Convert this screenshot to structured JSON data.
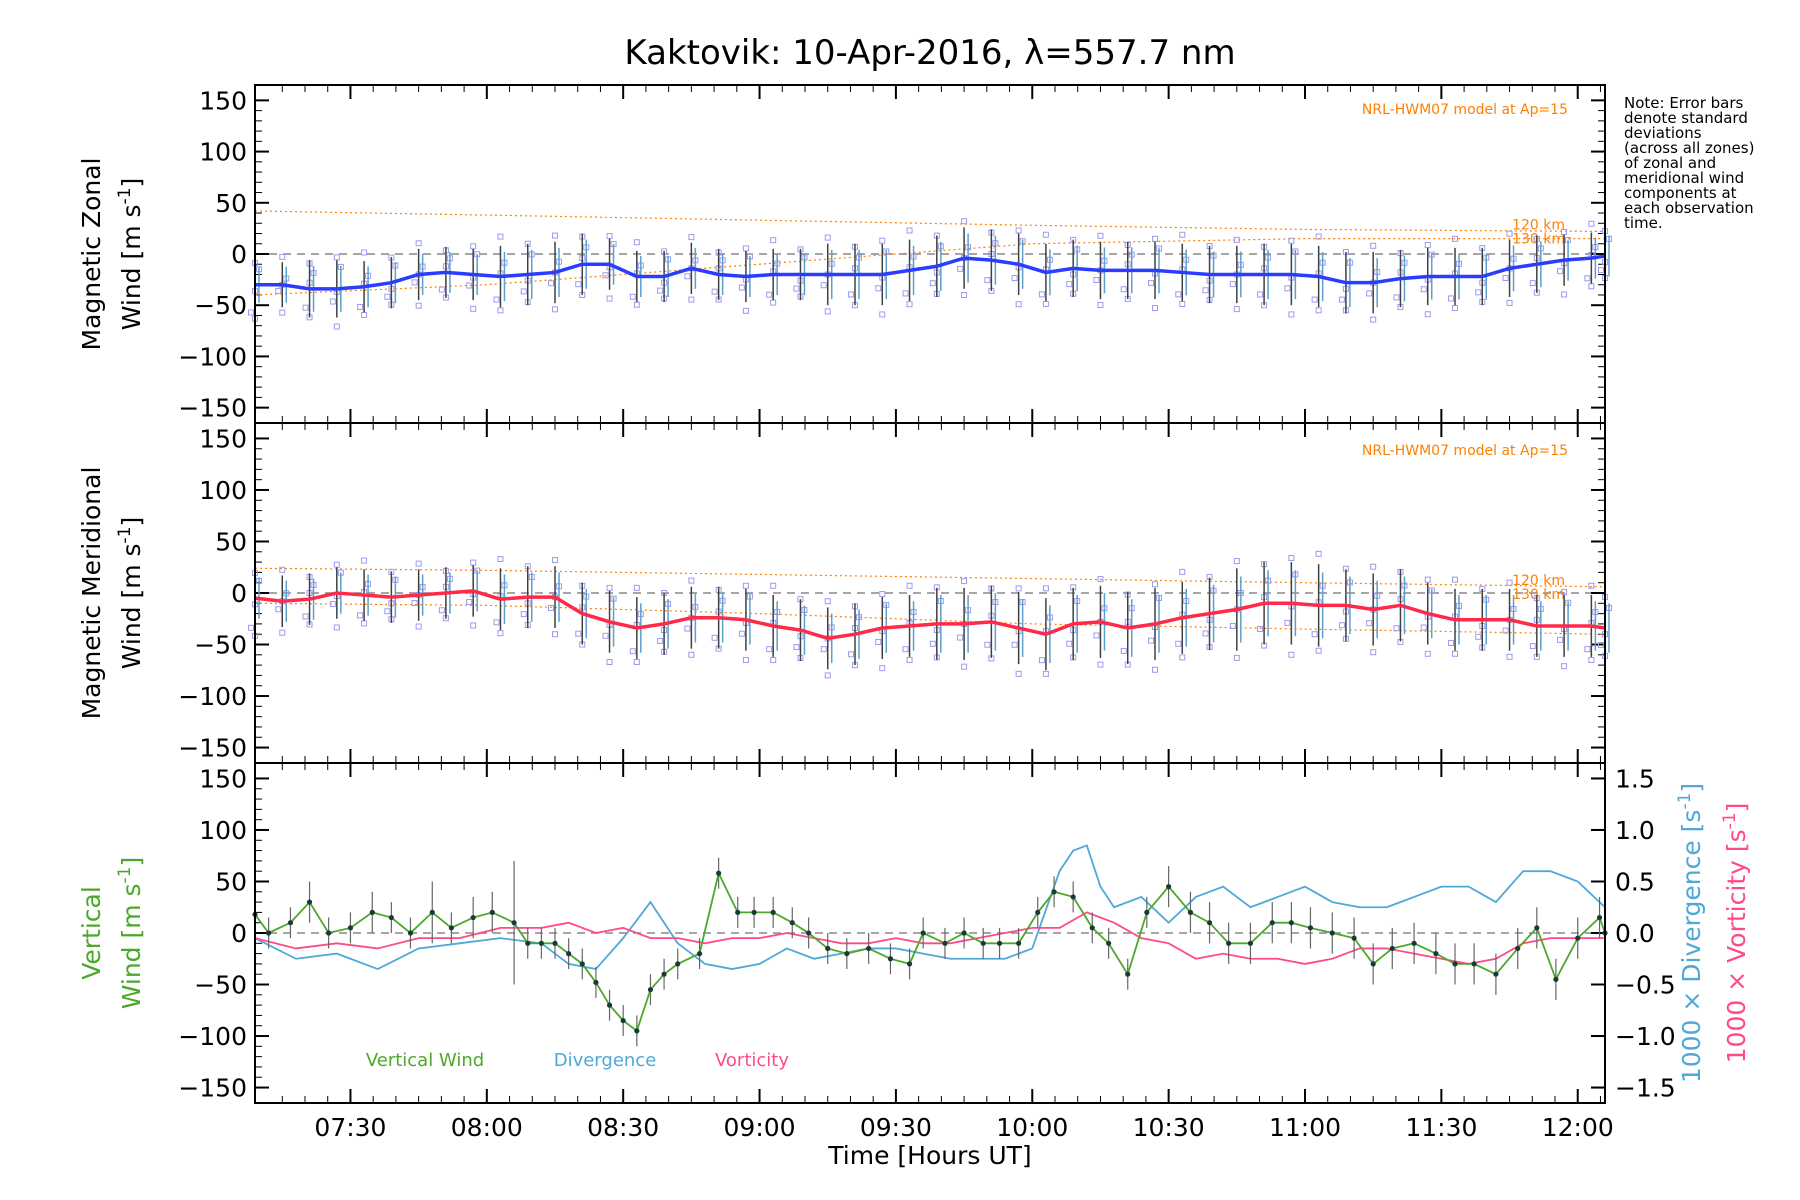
{
  "chart_data": {
    "type": "line",
    "title": "Kaktovik: 10-Apr-2016, λ=557.7 nm",
    "xlabel": "Time [Hours UT]",
    "x_ticks": [
      "07:30",
      "08:00",
      "08:30",
      "09:00",
      "09:30",
      "10:00",
      "10:30",
      "11:00",
      "11:30",
      "12:00"
    ],
    "xlim_hours": [
      7.15,
      12.1
    ],
    "note": [
      "Note: Error bars",
      "denote standard",
      "deviations",
      "(across all zones)",
      "of zonal and",
      "meridional wind",
      "components at",
      "each observation",
      "time."
    ],
    "colors": {
      "zonal": "#2a3cff",
      "meridional": "#ff2a4a",
      "vertical": "#4ca82a",
      "divergence": "#4fa8d8",
      "vorticity": "#ff4a8a",
      "model": "#ff8000",
      "scatter": "#9b9bf0",
      "errorbar": "#404040"
    },
    "panels": [
      {
        "id": "zonal",
        "ylabel_line1": "Magnetic Zonal",
        "ylabel_line2": "Wind [m s",
        "ylabel_sup": "-1",
        "ylabel_close": "]",
        "ylim": [
          -165,
          165
        ],
        "y_ticks": [
          150,
          100,
          50,
          0,
          -50,
          -100,
          -150
        ],
        "model_label": "NRL-HWM07 model at Ap=15",
        "model_levels": [
          "120 km",
          "130 km"
        ],
        "model_120": {
          "x": [
            7.15,
            8.0,
            9.0,
            10.0,
            11.0,
            12.1
          ],
          "y": [
            42,
            38,
            33,
            28,
            24,
            22
          ]
        },
        "model_130": {
          "x": [
            7.15,
            8.0,
            9.0,
            10.0,
            11.0,
            12.1
          ],
          "y": [
            -40,
            -30,
            -10,
            10,
            15,
            15
          ]
        },
        "series": {
          "x": [
            7.15,
            7.25,
            7.35,
            7.45,
            7.55,
            7.65,
            7.75,
            7.85,
            7.95,
            8.05,
            8.15,
            8.25,
            8.35,
            8.45,
            8.55,
            8.65,
            8.75,
            8.85,
            8.95,
            9.05,
            9.15,
            9.25,
            9.35,
            9.45,
            9.55,
            9.65,
            9.75,
            9.85,
            9.95,
            10.05,
            10.15,
            10.25,
            10.35,
            10.45,
            10.55,
            10.65,
            10.75,
            10.85,
            10.95,
            11.05,
            11.15,
            11.25,
            11.35,
            11.45,
            11.55,
            11.65,
            11.75,
            11.85,
            11.95,
            12.05,
            12.1
          ],
          "y": [
            -30,
            -30,
            -34,
            -34,
            -32,
            -28,
            -20,
            -18,
            -20,
            -22,
            -20,
            -18,
            -10,
            -10,
            -22,
            -22,
            -14,
            -20,
            -22,
            -20,
            -20,
            -20,
            -20,
            -20,
            -16,
            -12,
            -4,
            -6,
            -10,
            -18,
            -14,
            -16,
            -16,
            -16,
            -18,
            -20,
            -20,
            -20,
            -20,
            -22,
            -28,
            -28,
            -24,
            -22,
            -22,
            -22,
            -14,
            -10,
            -6,
            -4,
            -2
          ],
          "err": [
            22,
            22,
            28,
            28,
            25,
            25,
            25,
            25,
            25,
            30,
            30,
            30,
            30,
            25,
            25,
            25,
            25,
            25,
            25,
            25,
            25,
            30,
            30,
            30,
            30,
            30,
            30,
            30,
            30,
            28,
            28,
            28,
            28,
            28,
            28,
            28,
            28,
            30,
            30,
            30,
            30,
            30,
            28,
            28,
            28,
            28,
            28,
            28,
            25,
            25,
            25
          ]
        }
      },
      {
        "id": "meridional",
        "ylabel_line1": "Magnetic Meridional",
        "ylabel_line2": "Wind [m s",
        "ylabel_sup": "-1",
        "ylabel_close": "]",
        "ylim": [
          -165,
          165
        ],
        "y_ticks": [
          150,
          100,
          50,
          0,
          -50,
          -100,
          -150
        ],
        "model_label": "NRL-HWM07 model at Ap=15",
        "model_levels": [
          "120 km",
          "130 km"
        ],
        "model_120": {
          "x": [
            7.15,
            8.0,
            9.0,
            10.0,
            11.0,
            12.1
          ],
          "y": [
            24,
            22,
            18,
            14,
            10,
            6
          ]
        },
        "model_130": {
          "x": [
            7.15,
            8.0,
            9.0,
            10.0,
            11.0,
            12.1
          ],
          "y": [
            -10,
            -12,
            -20,
            -30,
            -35,
            -40
          ]
        },
        "series": {
          "x": [
            7.15,
            7.25,
            7.35,
            7.45,
            7.55,
            7.65,
            7.75,
            7.85,
            7.95,
            8.05,
            8.15,
            8.25,
            8.35,
            8.45,
            8.55,
            8.65,
            8.75,
            8.85,
            8.95,
            9.05,
            9.15,
            9.25,
            9.35,
            9.45,
            9.55,
            9.65,
            9.75,
            9.85,
            9.95,
            10.05,
            10.15,
            10.25,
            10.35,
            10.45,
            10.55,
            10.65,
            10.75,
            10.85,
            10.95,
            11.05,
            11.15,
            11.25,
            11.35,
            11.45,
            11.55,
            11.65,
            11.75,
            11.85,
            11.95,
            12.05,
            12.1
          ],
          "y": [
            -5,
            -8,
            -6,
            0,
            -2,
            -4,
            -2,
            0,
            2,
            -6,
            -4,
            -4,
            -20,
            -28,
            -34,
            -30,
            -24,
            -24,
            -26,
            -32,
            -36,
            -44,
            -40,
            -34,
            -32,
            -30,
            -30,
            -28,
            -34,
            -40,
            -30,
            -28,
            -34,
            -30,
            -24,
            -20,
            -16,
            -10,
            -10,
            -12,
            -12,
            -16,
            -12,
            -20,
            -26,
            -26,
            -26,
            -32,
            -32,
            -32,
            -34
          ],
          "err": [
            25,
            25,
            25,
            25,
            25,
            25,
            25,
            25,
            25,
            30,
            30,
            30,
            30,
            30,
            30,
            30,
            30,
            30,
            30,
            30,
            30,
            30,
            30,
            30,
            30,
            35,
            35,
            35,
            35,
            35,
            35,
            35,
            35,
            35,
            35,
            35,
            40,
            40,
            40,
            40,
            35,
            35,
            35,
            30,
            30,
            30,
            30,
            30,
            30,
            30,
            30
          ]
        }
      },
      {
        "id": "vertical",
        "ylabel_line1": "Vertical",
        "ylabel_line2": "Wind [m s",
        "ylabel_sup": "-1",
        "ylabel_close": "]",
        "ylim": [
          -165,
          165
        ],
        "y_ticks": [
          150,
          100,
          50,
          0,
          -50,
          -100,
          -150
        ],
        "right_axis": {
          "ylim": [
            -1.65,
            1.65
          ],
          "y_ticks": [
            "1.5",
            "1.0",
            "0.5",
            "0.0",
            "-0.5",
            "-1.0",
            "-1.5"
          ],
          "y_tick_values": [
            1.5,
            1.0,
            0.5,
            0.0,
            -0.5,
            -1.0,
            -1.5
          ],
          "label_divergence": "1000 × Divergence [s",
          "label_vorticity": "1000 × Vorticity [s",
          "label_sup": "-1",
          "label_close": "]"
        },
        "legend": [
          "Vertical Wind",
          "Divergence",
          "Vorticity"
        ],
        "vertical_wind": {
          "x": [
            7.15,
            7.2,
            7.28,
            7.35,
            7.42,
            7.5,
            7.58,
            7.65,
            7.72,
            7.8,
            7.87,
            7.95,
            8.02,
            8.1,
            8.15,
            8.2,
            8.25,
            8.3,
            8.35,
            8.4,
            8.45,
            8.5,
            8.55,
            8.6,
            8.65,
            8.7,
            8.78,
            8.85,
            8.92,
            8.98,
            9.05,
            9.12,
            9.18,
            9.25,
            9.32,
            9.4,
            9.48,
            9.55,
            9.6,
            9.68,
            9.75,
            9.82,
            9.88,
            9.95,
            10.02,
            10.08,
            10.15,
            10.22,
            10.28,
            10.35,
            10.42,
            10.5,
            10.58,
            10.65,
            10.72,
            10.8,
            10.88,
            10.95,
            11.02,
            11.1,
            11.18,
            11.25,
            11.32,
            11.4,
            11.48,
            11.55,
            11.62,
            11.7,
            11.78,
            11.85,
            11.92,
            12.0,
            12.08,
            12.1
          ],
          "y": [
            18,
            0,
            10,
            30,
            0,
            5,
            20,
            15,
            0,
            20,
            5,
            15,
            20,
            10,
            -10,
            -10,
            -10,
            -20,
            -30,
            -48,
            -70,
            -85,
            -95,
            -55,
            -40,
            -30,
            -20,
            58,
            20,
            20,
            20,
            10,
            0,
            -15,
            -20,
            -15,
            -25,
            -30,
            0,
            -10,
            0,
            -10,
            -10,
            -10,
            20,
            40,
            35,
            5,
            -10,
            -40,
            20,
            45,
            20,
            10,
            -10,
            -10,
            10,
            10,
            5,
            0,
            -5,
            -30,
            -15,
            -10,
            -20,
            -30,
            -30,
            -40,
            -15,
            5,
            -45,
            -5,
            15,
            0
          ],
          "err": [
            18,
            15,
            15,
            20,
            15,
            15,
            20,
            15,
            15,
            30,
            15,
            20,
            20,
            60,
            15,
            15,
            15,
            15,
            15,
            15,
            15,
            15,
            15,
            15,
            15,
            15,
            15,
            15,
            15,
            15,
            15,
            15,
            15,
            15,
            15,
            15,
            15,
            15,
            15,
            15,
            15,
            15,
            15,
            15,
            15,
            15,
            15,
            15,
            15,
            15,
            15,
            20,
            20,
            20,
            20,
            20,
            20,
            20,
            20,
            20,
            20,
            20,
            20,
            20,
            20,
            20,
            20,
            20,
            20,
            20,
            20,
            20,
            20,
            20
          ]
        },
        "divergence": {
          "x": [
            7.15,
            7.3,
            7.45,
            7.6,
            7.75,
            7.9,
            8.05,
            8.2,
            8.3,
            8.4,
            8.5,
            8.6,
            8.7,
            8.8,
            8.9,
            9.0,
            9.1,
            9.2,
            9.3,
            9.4,
            9.5,
            9.6,
            9.7,
            9.8,
            9.9,
            10.0,
            10.1,
            10.15,
            10.2,
            10.25,
            10.3,
            10.4,
            10.5,
            10.6,
            10.7,
            10.8,
            10.9,
            11.0,
            11.1,
            11.2,
            11.3,
            11.4,
            11.5,
            11.6,
            11.7,
            11.8,
            11.9,
            12.0,
            12.1
          ],
          "y": [
            -0.05,
            -0.25,
            -0.2,
            -0.35,
            -0.15,
            -0.1,
            -0.05,
            -0.1,
            -0.3,
            -0.35,
            -0.05,
            0.3,
            -0.1,
            -0.3,
            -0.35,
            -0.3,
            -0.15,
            -0.25,
            -0.2,
            -0.15,
            -0.15,
            -0.2,
            -0.25,
            -0.25,
            -0.25,
            -0.15,
            0.6,
            0.8,
            0.85,
            0.45,
            0.25,
            0.35,
            0.1,
            0.35,
            0.45,
            0.25,
            0.35,
            0.45,
            0.3,
            0.25,
            0.25,
            0.35,
            0.45,
            0.45,
            0.3,
            0.6,
            0.6,
            0.5,
            0.25
          ]
        },
        "vorticity": {
          "x": [
            7.15,
            7.3,
            7.45,
            7.6,
            7.75,
            7.9,
            8.05,
            8.2,
            8.3,
            8.4,
            8.5,
            8.6,
            8.7,
            8.8,
            8.9,
            9.0,
            9.1,
            9.2,
            9.3,
            9.4,
            9.5,
            9.6,
            9.7,
            9.8,
            9.9,
            10.0,
            10.1,
            10.2,
            10.3,
            10.4,
            10.5,
            10.6,
            10.7,
            10.8,
            10.9,
            11.0,
            11.1,
            11.2,
            11.3,
            11.4,
            11.5,
            11.6,
            11.7,
            11.8,
            11.9,
            12.0,
            12.1
          ],
          "y": [
            -0.05,
            -0.15,
            -0.1,
            -0.15,
            -0.05,
            -0.05,
            0.05,
            0.05,
            0.1,
            0.0,
            0.05,
            -0.05,
            -0.05,
            -0.1,
            -0.05,
            -0.05,
            0.0,
            -0.05,
            -0.1,
            -0.1,
            -0.05,
            -0.1,
            -0.1,
            -0.05,
            0.0,
            0.05,
            0.05,
            0.2,
            0.1,
            -0.05,
            -0.1,
            -0.25,
            -0.2,
            -0.25,
            -0.25,
            -0.3,
            -0.25,
            -0.15,
            -0.15,
            -0.2,
            -0.25,
            -0.3,
            -0.25,
            -0.1,
            -0.05,
            -0.05,
            -0.05
          ]
        }
      }
    ]
  }
}
